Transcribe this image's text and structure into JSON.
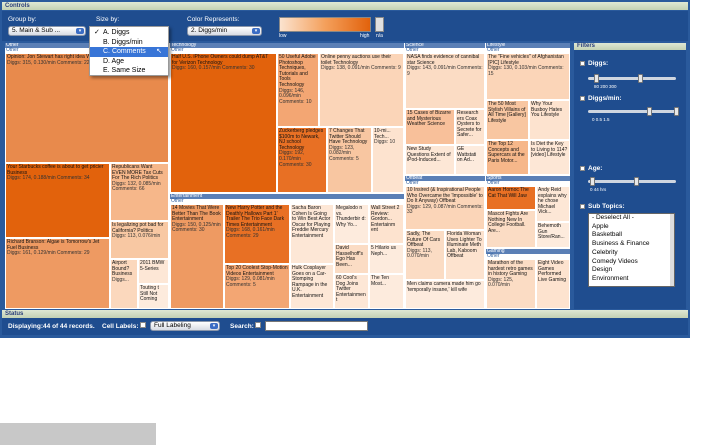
{
  "controls": {
    "header": "Controls",
    "group_by_label": "Group by:",
    "group_by_value": "5. Main & Sub ...",
    "size_by_label": "Size by:",
    "size_by_value": "C. Comments",
    "size_options": [
      {
        "label": "A. Diggs",
        "checked": "✓"
      },
      {
        "label": "B. Diggs/min",
        "checked": ""
      },
      {
        "label": "C. Comments",
        "checked": ""
      },
      {
        "label": "D. Age",
        "checked": ""
      },
      {
        "label": "E. Same Size",
        "checked": ""
      }
    ],
    "color_label": "Color Represents:",
    "color_value": "2. Diggs/min",
    "legend_low": "low",
    "legend_high": "high",
    "legend_na": "n/a"
  },
  "groups": [
    {
      "name": "Other",
      "sub": "Other"
    },
    {
      "name": "Technology",
      "sub": "Other"
    },
    {
      "name": "Science",
      "sub": "Other"
    },
    {
      "name": "Lifestyle",
      "sub": "Other"
    },
    {
      "name": "Entertainment",
      "sub": "Other"
    },
    {
      "name": "Offbeat",
      "sub": "Other"
    },
    {
      "name": "Sports",
      "sub": "Other"
    },
    {
      "name": "Gaming",
      "sub": "Other"
    }
  ],
  "tiles": [
    {
      "h": "Opinion: Jon Stewart has right idea World news",
      "c": "Diggs: 315, 0.130/min Comments: 22"
    },
    {
      "h": "Your Starbucks coffee is about to get pricier Business",
      "c": "Diggs: 174, 0.188/min Comments: 34"
    },
    {
      "h": "Republicans Want EVEN MORE Tax Cuts For The Rich Politics",
      "c": "Diggs: 132, 0.085/min Comments: 66"
    },
    {
      "h": "Is legalizing pot bad for California? Politics",
      "c": "Diggs: 113, 0.076/min"
    },
    {
      "h": "Richard Branson: Algae is Tomorrow's Jet Fuel Business",
      "c": "Diggs: 161, 0.129/min Comments: 29"
    },
    {
      "h": "Airport Bound? Business",
      "c": "Diggs..."
    },
    {
      "h": "2011 BMW 5-Series",
      "c": ""
    },
    {
      "h": "Touting t Still Not Coming",
      "c": ""
    },
    {
      "h": "Half U.S. iPhone Owners could dump AT&T for Verizon Technology",
      "c": "Diggs: 160, 0.157/min Comments: 30"
    },
    {
      "h": "50 Useful Adobe Photoshop Techniques, Tutorials and Tools Technology",
      "c": "Diggs: 146, 0.096/min Comments: 10"
    },
    {
      "h": "Online penny auctions use their toilet Technology",
      "c": "Diggs: 138, 0.091/min Comments: 9"
    },
    {
      "h": "Zuckerberg pledges $100m to Newark, NJ school Technology",
      "c": "Diggs: 192, 0.170/min Comments: 30"
    },
    {
      "h": "7 Changes That Twitter Should Have Technology",
      "c": "Diggs: 123, 0.082/min Comments: 5"
    },
    {
      "h": "10-mi... Tech...",
      "c": "Diggs: 10"
    },
    {
      "h": "NASA finds evidence of cannibal star Science",
      "c": "Diggs: 143, 0.091/min Comments: 9"
    },
    {
      "h": "15 Cases of Bizarre and Mysterious Weather Science",
      "c": ""
    },
    {
      "h": "Research ers Coax Oysters to Secrete for Safer...",
      "c": ""
    },
    {
      "h": "New Study Questions Extent of iPod-Induced...",
      "c": ""
    },
    {
      "h": "GE Wattstati on Ad...",
      "c": ""
    },
    {
      "h": "The \"Fine vehicles\" of Afghanistan [PIC] Lifestyle",
      "c": "Diggs: 130, 0.103/min Comments: 15"
    },
    {
      "h": "The 50 Most Stylish Villains of All Time [Gallery] Lifestyle",
      "c": ""
    },
    {
      "h": "Why Your Busboy Hates You Lifestyle",
      "c": ""
    },
    {
      "h": "The Top 12 Concepts and Supercars at the Paris Motor...",
      "c": ""
    },
    {
      "h": "Is Diet the Key to Living to 114? [video] Lifestyle",
      "c": ""
    },
    {
      "h": "14 Movies That Were Better Than The Book Entertainment",
      "c": "Diggs: 150, 0.125/min Comments: 30"
    },
    {
      "h": "New Harry Potter and the Deathly Hallows Part 1' Trailer The Trio Face Dark Times Entertainment",
      "c": "Diggs: 168, 0.161/min Comments: 29"
    },
    {
      "h": "Sacha Baron Cohen Is Going to Win Best Actor Oscar for Playing Freddie Mercury Entertainment",
      "c": ""
    },
    {
      "h": "Megalodo n vs. Thunderbir d: Why Yo...",
      "c": ""
    },
    {
      "h": "Wall Street 2 Review: Gordon... Entertainm ent",
      "c": ""
    },
    {
      "h": "Top 20 Coolest Stop-Motion Videos Entertainment",
      "c": "Diggs: 129, 0.081/min Comments: 5"
    },
    {
      "h": "Hulk Cosplayer Goes on a Car-Stomping Rampage in the U.K. Entertainment",
      "c": ""
    },
    {
      "h": "David Hasselhoff's Ego Has Been...",
      "c": ""
    },
    {
      "h": "5 Hilario us Neph...",
      "c": ""
    },
    {
      "h": "60 Cool's Dog Joins Twitter Entertainment",
      "c": ""
    },
    {
      "h": "The Ten Most...",
      "c": ""
    },
    {
      "h": "10 Insired (& Inspirational People Who Overcame the 'Impossible' to Do It Anyway) Offbeat",
      "c": "Diggs: 129, 0.087/min Comments: 33"
    },
    {
      "h": "Sadly, The Future Of Cars Offbeat",
      "c": "Diggs: 113, 0.070/min"
    },
    {
      "h": "Florida Woman Uses Lighter To Illuminate Meth Lab, Kaboom Offbeat",
      "c": ""
    },
    {
      "h": "Men claims camera made him go 'temporally insane,' kill wife",
      "c": ""
    },
    {
      "h": "Aaron Hornoc The Cat That Will Jaw",
      "c": ""
    },
    {
      "h": "Mascot Fights Are Nothing New In College Football. Are...",
      "c": ""
    },
    {
      "h": "Andy Reid explains why he chose Michael Vick...",
      "c": ""
    },
    {
      "h": "Behemoth Gun Store/Ran...",
      "c": ""
    },
    {
      "h": "Marathon of the hardest retro games in history Gaming",
      "c": "Diggs: 125, 0.070/min"
    },
    {
      "h": "Eight Video Games Performed Live Gaming",
      "c": ""
    }
  ],
  "filters": {
    "header": "Filters",
    "diggs_label": "Diggs:",
    "diggs_ticks": "80      200   300",
    "diggs_min_label": "Diggs/min:",
    "diggs_min_ticks": "0     0.5    1.5",
    "age_label": "Age:",
    "age_ticks": "0              44 hrs",
    "diggs_range": [
      0.1,
      0.6
    ],
    "diggs_min_range": [
      0.7,
      1.0
    ],
    "age_range": [
      0.05,
      0.55
    ],
    "sub_topics_label": "Sub Topics:",
    "topics": [
      "- Deselect All -",
      "Apple",
      "Basketball",
      "Business & Finance",
      "Celebrity",
      "Comedy Videos",
      "Design",
      "Environment"
    ]
  },
  "status": {
    "header": "Status",
    "displaying": "Displaying:44 of 44 records.",
    "cell_labels_label": "Cell Labels:",
    "cell_labels_value": "Full Labeling",
    "search_label": "Search:",
    "search_value": ""
  }
}
